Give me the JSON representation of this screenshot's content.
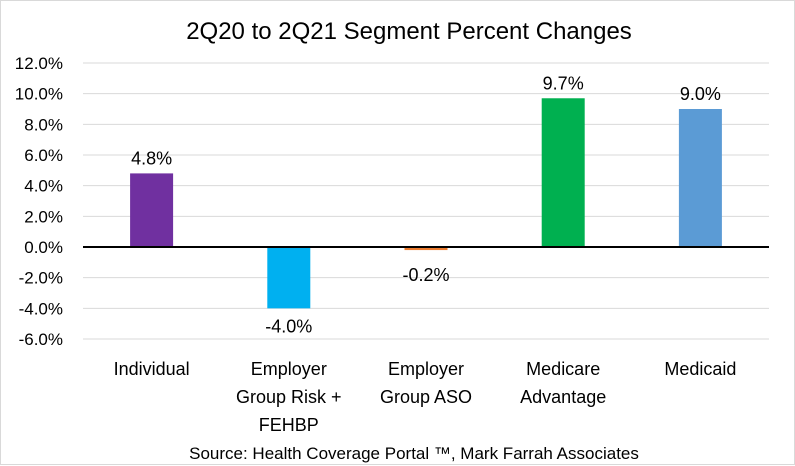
{
  "chart_data": {
    "type": "bar",
    "title": "2Q20 to 2Q21 Segment Percent Changes",
    "categories": [
      [
        "Individual"
      ],
      [
        "Employer",
        "Group Risk +",
        "FEHBP"
      ],
      [
        "Employer",
        "Group ASO"
      ],
      [
        "Medicare",
        "Advantage"
      ],
      [
        "Medicaid"
      ]
    ],
    "values": [
      4.8,
      -4.0,
      -0.2,
      9.7,
      9.0
    ],
    "data_labels": [
      "4.8%",
      "-4.0%",
      "-0.2%",
      "9.7%",
      "9.0%"
    ],
    "colors": [
      "#7030A0",
      "#00B0F0",
      "#ED7D31",
      "#00B050",
      "#5B9BD5"
    ],
    "ylim": [
      -6,
      12
    ],
    "ytick_step": 2,
    "ytick_labels": [
      "12.0%",
      "10.0%",
      "8.0%",
      "6.0%",
      "4.0%",
      "2.0%",
      "0.0%",
      "-2.0%",
      "-4.0%",
      "-6.0%"
    ],
    "grid": true,
    "legend": "none",
    "source": "Source: Health Coverage Portal ™, Mark Farrah Associates"
  }
}
